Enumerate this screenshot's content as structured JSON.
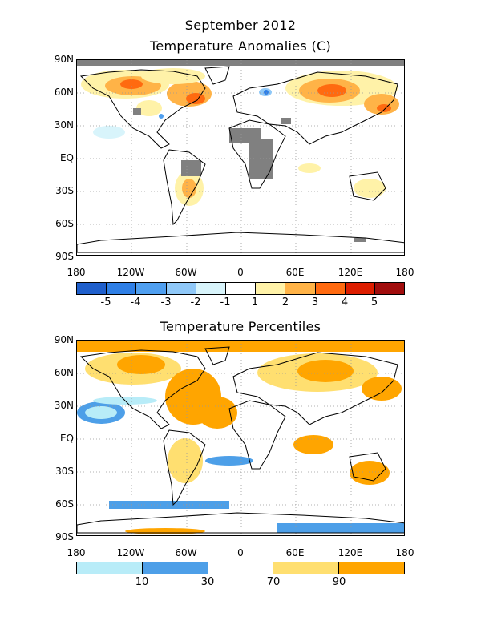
{
  "header": {
    "line1": "September 2012",
    "line2": "Temperature Anomalies (C)"
  },
  "map_lat_labels": [
    "90N",
    "60N",
    "30N",
    "EQ",
    "30S",
    "60S",
    "90S"
  ],
  "map_lon_labels": [
    "180",
    "120W",
    "60W",
    "0",
    "60E",
    "120E",
    "180"
  ],
  "anomaly_legend": {
    "labels": [
      "-5",
      "-4",
      "-3",
      "-2",
      "-1",
      "1",
      "2",
      "3",
      "4",
      "5"
    ],
    "colors": [
      "#1f5fcc",
      "#2f7fe6",
      "#4f9ff0",
      "#8fc8f8",
      "#d8f4fb",
      "#ffffff",
      "#fff2a8",
      "#ffb347",
      "#ff6a10",
      "#dd1e00",
      "#a10d0d"
    ]
  },
  "percentile_panel": {
    "title": "Temperature Percentiles",
    "legend_labels": [
      "10",
      "30",
      "70",
      "90"
    ],
    "legend_colors": [
      "#b8ecf8",
      "#4d9fe8",
      "#ffffff",
      "#ffdf70",
      "#ffa500"
    ]
  },
  "land_missing_color": "#808080"
}
